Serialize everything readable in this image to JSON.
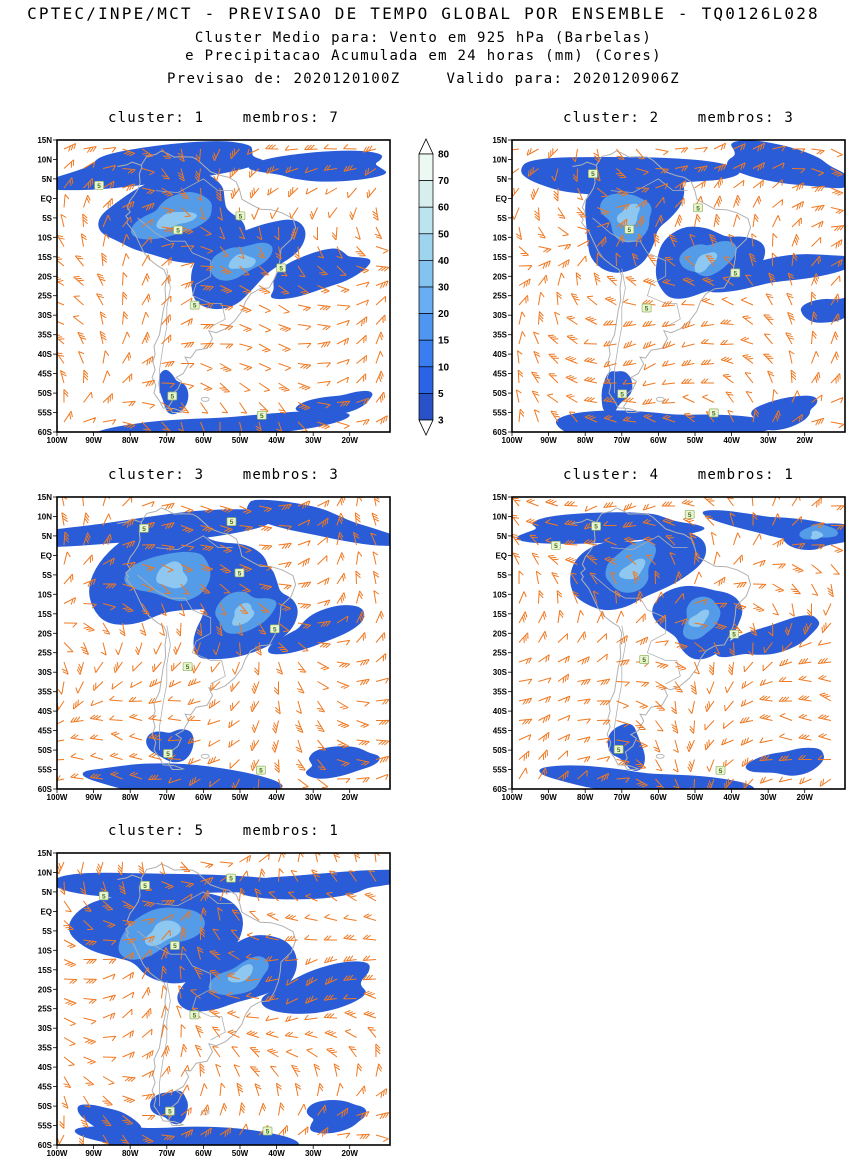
{
  "header": {
    "title": "CPTEC/INPE/MCT - PREVISAO DE TEMPO GLOBAL POR ENSEMBLE - TQ0126L028",
    "subtitle_line1": "Cluster Medio para: Vento em 925 hPa (Barbelas)",
    "subtitle_line2": "e Precipitacao Acumulada em 24 horas (mm) (Cores)",
    "init_label": "Previsao de:",
    "init_value": "2020120100Z",
    "valid_label": "Valido para:",
    "valid_value": "2020120906Z"
  },
  "chart_data": {
    "type": "heatmap",
    "subtype": "ensemble cluster-mean weather maps over South America: 925 hPa wind barbs (orange) + 24h accumulated precipitation shading (mm, blues)",
    "title": "CPTEC/INPE/MCT - PREVISAO DE TEMPO GLOBAL POR ENSEMBLE - TQ0126L028",
    "init_time": "2020120100Z",
    "valid_time": "2020120906Z",
    "contour_label_value": "5",
    "panels": [
      {
        "cluster": 1,
        "membros": 7,
        "title": "cluster: 1    membros: 7"
      },
      {
        "cluster": 2,
        "membros": 3,
        "title": "cluster: 2    membros: 3"
      },
      {
        "cluster": 3,
        "membros": 3,
        "title": "cluster: 3    membros: 3"
      },
      {
        "cluster": 4,
        "membros": 1,
        "title": "cluster: 4    membros: 1"
      },
      {
        "cluster": 5,
        "membros": 1,
        "title": "cluster: 5    membros: 1"
      }
    ],
    "axes": {
      "lat_labels": [
        "15N",
        "10N",
        "5N",
        "EQ",
        "5S",
        "10S",
        "15S",
        "20S",
        "25S",
        "30S",
        "35S",
        "40S",
        "45S",
        "50S",
        "55S",
        "60S"
      ],
      "lon_labels": [
        "100W",
        "90W",
        "80W",
        "70W",
        "60W",
        "50W",
        "40W",
        "30W",
        "20W"
      ],
      "lat_range": [
        "15N",
        "60S"
      ],
      "lon_range": [
        "100W",
        "20W"
      ]
    },
    "colorbar": {
      "unit": "mm",
      "levels": [
        3,
        5,
        10,
        15,
        20,
        30,
        40,
        50,
        60,
        70,
        80
      ],
      "labels_top_to_bottom": [
        "80",
        "70",
        "60",
        "50",
        "40",
        "30",
        "20",
        "15",
        "10",
        "5",
        "3"
      ],
      "colors_low_to_high": [
        "#2a52c8",
        "#2b63e6",
        "#3a7df0",
        "#4f96f2",
        "#69adf2",
        "#84c2f0",
        "#9fd4ef",
        "#bbe4ee",
        "#d6efec",
        "#ecf8f2"
      ],
      "under_color": "#ffffff",
      "over_color": "#ffffff"
    },
    "style_colors": {
      "wind_barbs": "#f07820",
      "precip_fill": "#2b5cd8",
      "coastlines": "#b0b0b0",
      "contour_label_bg": "#e9f4d2"
    }
  }
}
